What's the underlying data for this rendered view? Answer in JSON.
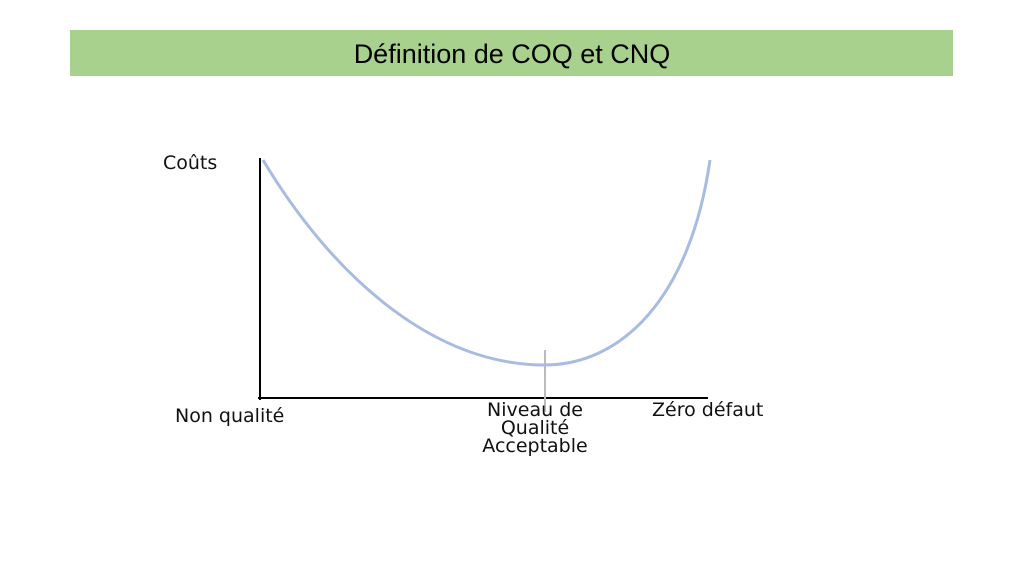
{
  "header": {
    "title": "Définition de COQ et CNQ"
  },
  "diagram": {
    "y_axis_label": "Coûts",
    "x_labels": {
      "left": "Non qualité",
      "middle": [
        "Niveau de",
        "Qualité",
        "Acceptable"
      ],
      "right": "Zéro défaut"
    }
  }
}
